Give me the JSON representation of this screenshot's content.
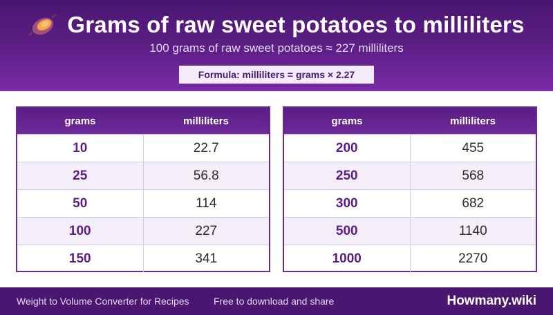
{
  "header": {
    "title": "Grams of raw sweet potatoes to milliliters",
    "subtitle": "100 grams of raw sweet potatoes ≈ 227 milliliters",
    "formula": "Formula: milliliters = grams × 2.27",
    "icon": "sweet-potato-icon"
  },
  "tables": {
    "left": {
      "col1": "grams",
      "col2": "milliliters",
      "rows": [
        {
          "grams": "10",
          "ml": "22.7"
        },
        {
          "grams": "25",
          "ml": "56.8"
        },
        {
          "grams": "50",
          "ml": "114"
        },
        {
          "grams": "100",
          "ml": "227"
        },
        {
          "grams": "150",
          "ml": "341"
        }
      ]
    },
    "right": {
      "col1": "grams",
      "col2": "milliliters",
      "rows": [
        {
          "grams": "200",
          "ml": "455"
        },
        {
          "grams": "250",
          "ml": "568"
        },
        {
          "grams": "300",
          "ml": "682"
        },
        {
          "grams": "500",
          "ml": "1140"
        },
        {
          "grams": "1000",
          "ml": "2270"
        }
      ]
    }
  },
  "footer": {
    "left_text": "Weight to Volume Converter for Recipes",
    "middle_text": "Free to download and share",
    "brand": "Howmany.wiki"
  },
  "colors": {
    "header_dark": "#4a1670",
    "header_light": "#7a2aa6",
    "accent": "#5a1d84"
  }
}
